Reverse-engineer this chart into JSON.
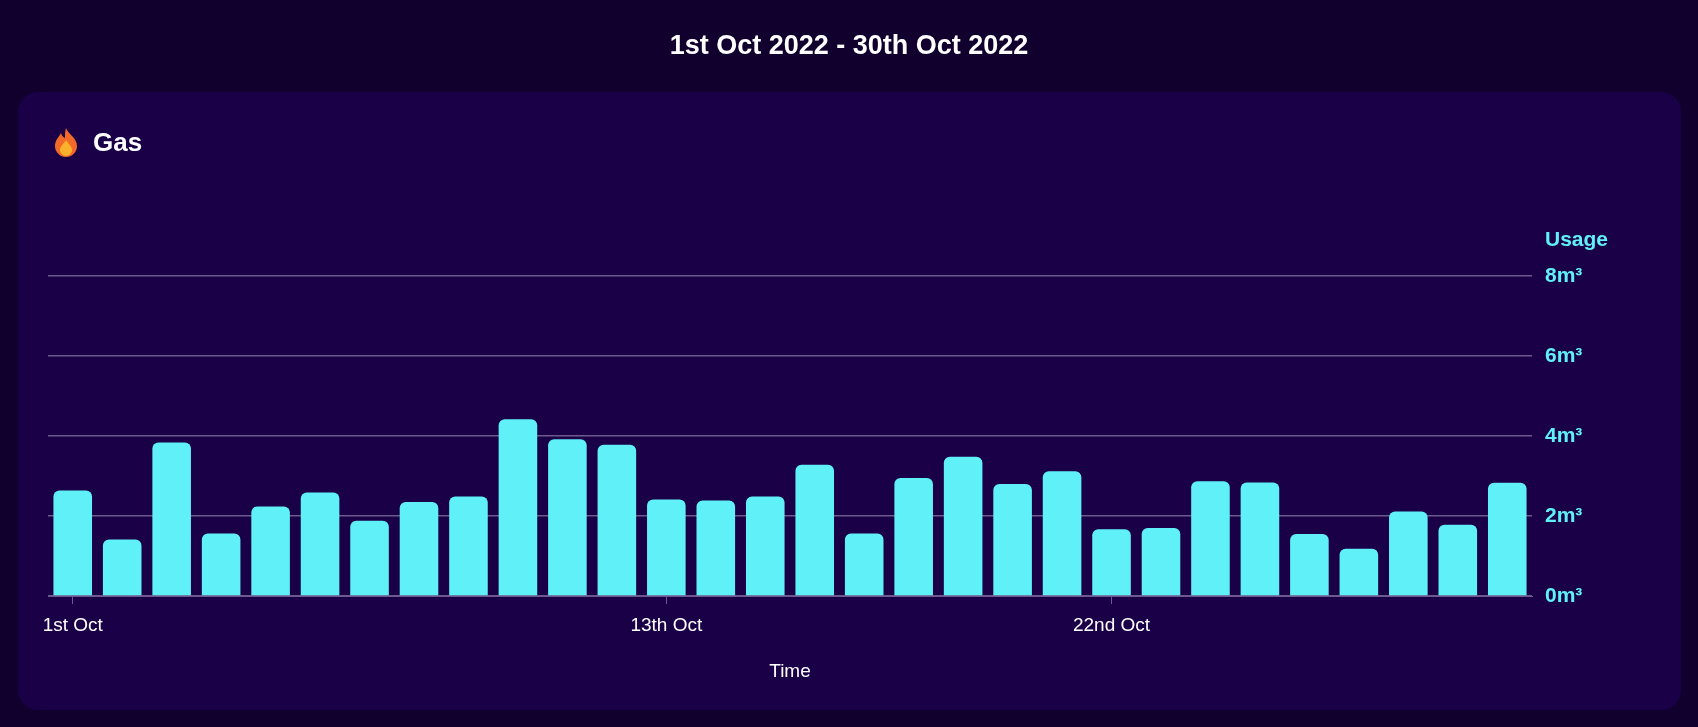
{
  "chart_data": {
    "type": "bar",
    "title": "1st Oct 2022 - 30th Oct 2022",
    "subtitle": "Gas",
    "xlabel": "Time",
    "ylabel": "Usage",
    "categories": [
      "1st Oct",
      null,
      null,
      null,
      null,
      null,
      null,
      null,
      null,
      null,
      null,
      null,
      "13th Oct",
      null,
      null,
      null,
      null,
      null,
      null,
      null,
      null,
      "22nd Oct",
      null,
      null,
      null,
      null,
      null,
      null,
      null,
      null
    ],
    "values": [
      2.64,
      1.41,
      3.84,
      1.56,
      2.24,
      2.59,
      1.88,
      2.35,
      2.49,
      4.42,
      3.92,
      3.78,
      2.41,
      2.39,
      2.49,
      3.28,
      1.56,
      2.95,
      3.48,
      2.8,
      3.12,
      1.67,
      1.7,
      2.87,
      2.84,
      1.55,
      1.18,
      2.11,
      1.78,
      2.83
    ],
    "color": "#60f0f8",
    "ylim": [
      0,
      8
    ],
    "yticks": [
      {
        "value": 0,
        "label": "0m³"
      },
      {
        "value": 2,
        "label": "2m³"
      },
      {
        "value": 4,
        "label": "4m³"
      },
      {
        "value": 6,
        "label": "6m³"
      },
      {
        "value": 8,
        "label": "8m³"
      }
    ],
    "grid": "y"
  }
}
